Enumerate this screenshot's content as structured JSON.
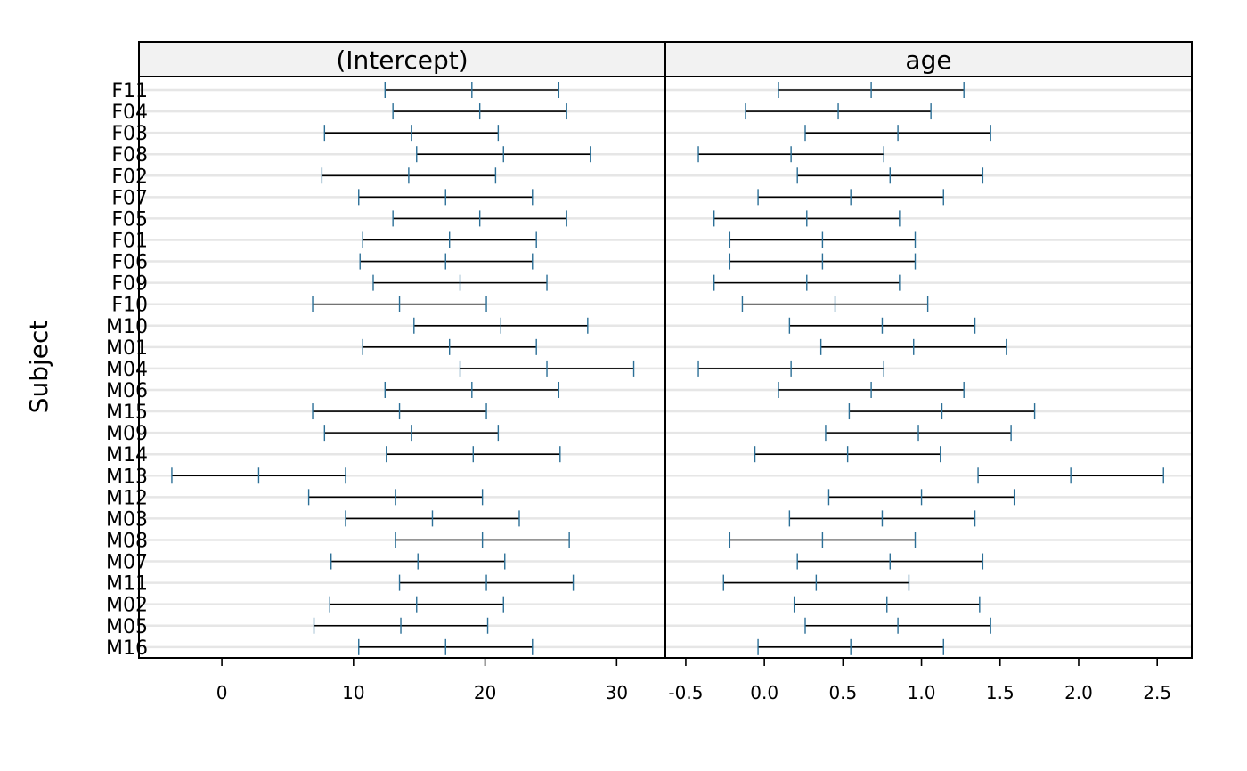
{
  "chart_data": {
    "type": "interval",
    "ylabel": "Subject",
    "subjects": [
      "F11",
      "F04",
      "F03",
      "F08",
      "F02",
      "F07",
      "F05",
      "F01",
      "F06",
      "F09",
      "F10",
      "M10",
      "M01",
      "M04",
      "M06",
      "M15",
      "M09",
      "M14",
      "M13",
      "M12",
      "M03",
      "M08",
      "M07",
      "M11",
      "M02",
      "M05",
      "M16"
    ],
    "panels": [
      {
        "title": "(Intercept)",
        "xlim": [
          -6.3,
          33.7
        ],
        "ticks": [
          0,
          10,
          20,
          30
        ],
        "tick_labels": [
          "0",
          "10",
          "20",
          "30"
        ],
        "intervals": [
          [
            12.4,
            19.0,
            25.6
          ],
          [
            13.0,
            19.6,
            26.2
          ],
          [
            7.8,
            14.4,
            21.0
          ],
          [
            14.8,
            21.4,
            28.0
          ],
          [
            7.6,
            14.2,
            20.8
          ],
          [
            10.4,
            17.0,
            23.6
          ],
          [
            13.0,
            19.6,
            26.2
          ],
          [
            10.7,
            17.3,
            23.9
          ],
          [
            10.5,
            17.0,
            23.6
          ],
          [
            11.5,
            18.1,
            24.7
          ],
          [
            6.9,
            13.5,
            20.1
          ],
          [
            14.6,
            21.2,
            27.8
          ],
          [
            10.7,
            17.3,
            23.9
          ],
          [
            18.1,
            24.7,
            31.3
          ],
          [
            12.4,
            19.0,
            25.6
          ],
          [
            6.9,
            13.5,
            20.1
          ],
          [
            7.8,
            14.4,
            21.0
          ],
          [
            12.5,
            19.1,
            25.7
          ],
          [
            -3.8,
            2.8,
            9.4
          ],
          [
            6.6,
            13.2,
            19.8
          ],
          [
            9.4,
            16.0,
            22.6
          ],
          [
            13.2,
            19.8,
            26.4
          ],
          [
            8.3,
            14.9,
            21.5
          ],
          [
            13.5,
            20.1,
            26.7
          ],
          [
            8.2,
            14.8,
            21.4
          ],
          [
            7.0,
            13.6,
            20.2
          ],
          [
            10.4,
            17.0,
            23.6
          ]
        ]
      },
      {
        "title": "age",
        "xlim": [
          -0.63,
          2.72
        ],
        "ticks": [
          -0.5,
          0.0,
          0.5,
          1.0,
          1.5,
          2.0,
          2.5
        ],
        "tick_labels": [
          "-0.5",
          "0.0",
          "0.5",
          "1.0",
          "1.5",
          "2.0",
          "2.5"
        ],
        "intervals": [
          [
            0.09,
            0.68,
            1.27
          ],
          [
            -0.12,
            0.47,
            1.06
          ],
          [
            0.26,
            0.85,
            1.44
          ],
          [
            -0.42,
            0.17,
            0.76
          ],
          [
            0.21,
            0.8,
            1.39
          ],
          [
            -0.04,
            0.55,
            1.14
          ],
          [
            -0.32,
            0.27,
            0.86
          ],
          [
            -0.22,
            0.37,
            0.96
          ],
          [
            -0.22,
            0.37,
            0.96
          ],
          [
            -0.32,
            0.27,
            0.86
          ],
          [
            -0.14,
            0.45,
            1.04
          ],
          [
            0.16,
            0.75,
            1.34
          ],
          [
            0.36,
            0.95,
            1.54
          ],
          [
            -0.42,
            0.17,
            0.76
          ],
          [
            0.09,
            0.68,
            1.27
          ],
          [
            0.54,
            1.13,
            1.72
          ],
          [
            0.39,
            0.98,
            1.57
          ],
          [
            -0.06,
            0.53,
            1.12
          ],
          [
            1.36,
            1.95,
            2.54
          ],
          [
            0.41,
            1.0,
            1.59
          ],
          [
            0.16,
            0.75,
            1.34
          ],
          [
            -0.22,
            0.37,
            0.96
          ],
          [
            0.21,
            0.8,
            1.39
          ],
          [
            -0.26,
            0.33,
            0.92
          ],
          [
            0.19,
            0.78,
            1.37
          ],
          [
            0.26,
            0.85,
            1.44
          ],
          [
            -0.04,
            0.55,
            1.14
          ]
        ]
      }
    ]
  },
  "colors": {
    "cap": "#2b6f97",
    "line": "#000000",
    "grid": "#e6e6e6",
    "strip": "#f2f2f2"
  }
}
